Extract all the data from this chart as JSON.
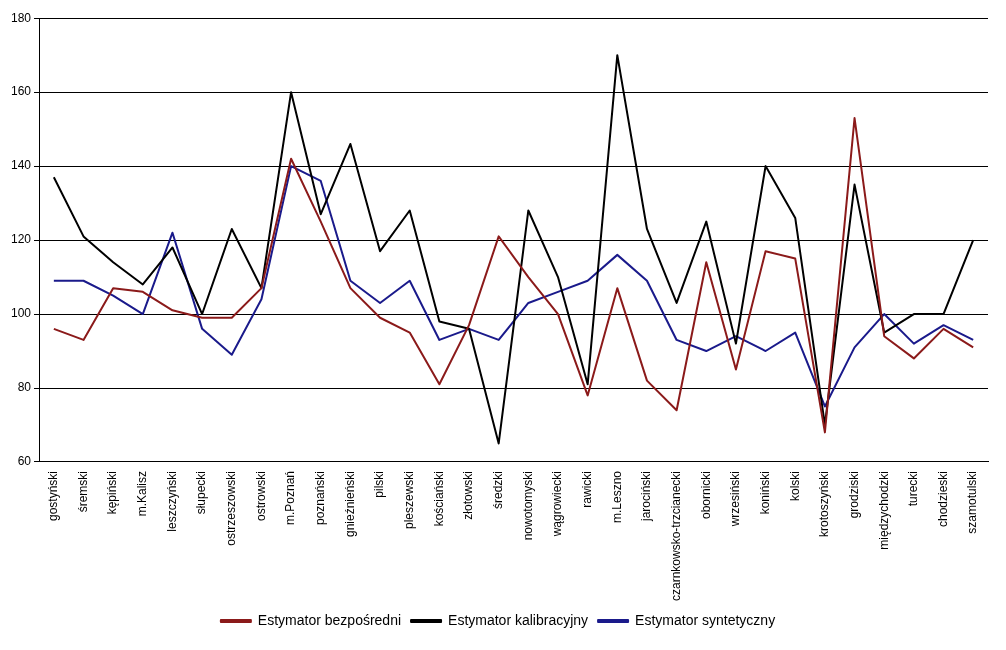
{
  "chart_data": {
    "type": "line",
    "categories": [
      "gostyński",
      "śremski",
      "kępiński",
      "m.Kalisz",
      "leszczyński",
      "słupecki",
      "ostrzeszowski",
      "ostrowski",
      "m.Poznań",
      "poznański",
      "gnieźnieński",
      "pilski",
      "pleszewski",
      "kościański",
      "złotowski",
      "średzki",
      "nowotomyski",
      "wągrowiecki",
      "rawicki",
      "m.Leszno",
      "jarociński",
      "czarnkowsko-trzcianecki",
      "obornicki",
      "wrzesiński",
      "koniński",
      "kolski",
      "krotoszyński",
      "grodziski",
      "międzychodzki",
      "turecki",
      "chodzieski",
      "szamotulski"
    ],
    "series": [
      {
        "name": "Estymator bezpośredni",
        "color": "#8b1a1a",
        "values": [
          96,
          93,
          107,
          106,
          101,
          99,
          99,
          107,
          142,
          125,
          107,
          99,
          95,
          81,
          97,
          121,
          110,
          100,
          78,
          107,
          82,
          74,
          114,
          85,
          117,
          115,
          68,
          153,
          94,
          88,
          96,
          91
        ]
      },
      {
        "name": "Estymator kalibracyjny",
        "color": "#000000",
        "values": [
          137,
          121,
          114,
          108,
          118,
          100,
          123,
          107,
          160,
          127,
          146,
          117,
          128,
          98,
          96,
          65,
          128,
          110,
          81,
          170,
          123,
          103,
          125,
          92,
          140,
          126,
          70,
          135,
          95,
          100,
          100,
          120
        ]
      },
      {
        "name": "Estymator syntetyczny",
        "color": "#1a1a8b",
        "values": [
          109,
          109,
          105,
          100,
          122,
          96,
          89,
          104,
          140,
          136,
          109,
          103,
          109,
          93,
          96,
          93,
          103,
          106,
          109,
          116,
          109,
          93,
          90,
          94,
          90,
          95,
          75,
          91,
          100,
          92,
          97,
          93
        ]
      }
    ],
    "ylim": [
      60,
      180
    ],
    "yticks": [
      60,
      80,
      100,
      120,
      140,
      160,
      180
    ],
    "grid": "y",
    "legend": "bottom",
    "marker": "none",
    "line_style": "solid"
  }
}
